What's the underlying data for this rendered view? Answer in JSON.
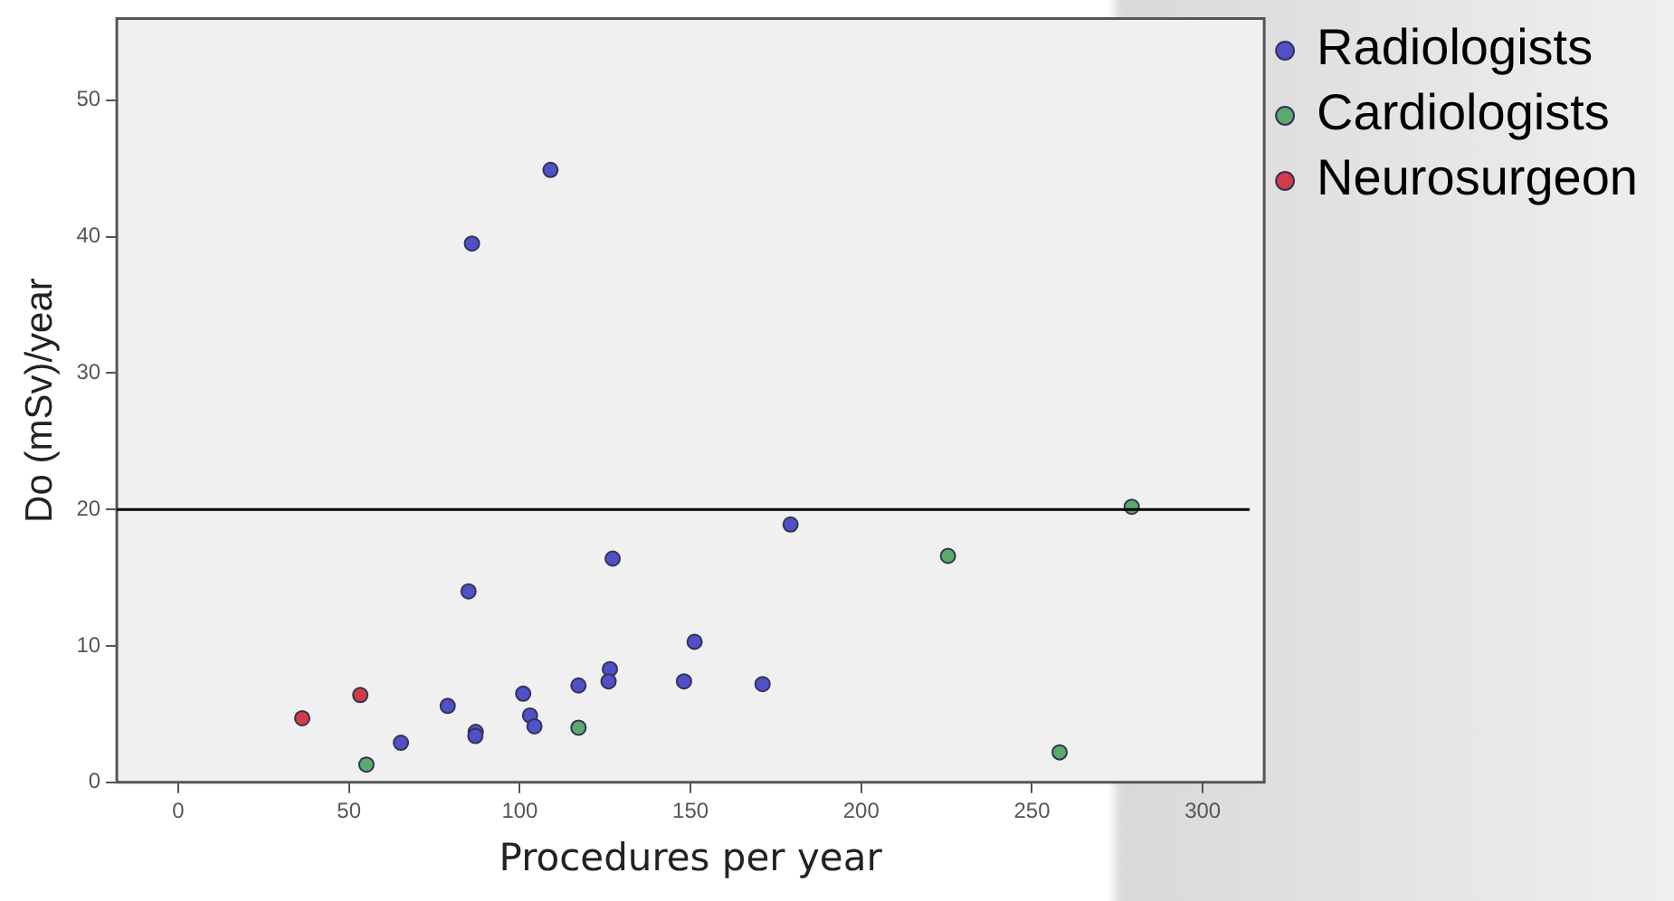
{
  "chart_data": {
    "type": "scatter",
    "xlabel": "Procedures per year",
    "ylabel": "Do (mSv)/year",
    "xlim": [
      -18,
      318
    ],
    "xticks": [
      0,
      50,
      100,
      150,
      200,
      250,
      300
    ],
    "ylim": [
      0,
      56
    ],
    "yticks": [
      0,
      10,
      20,
      30,
      40,
      50
    ],
    "grid": false,
    "legend": "top right",
    "marker": "circle",
    "ref_lines": [
      {
        "axis": "y",
        "value": 20,
        "color": "#000000"
      }
    ],
    "series": [
      {
        "name": "Radiologists",
        "color": "#5050c8",
        "x": [
          109,
          86,
          85,
          127.2,
          126.4,
          126,
          117.2,
          101,
          103,
          104.3,
          87.1,
          87,
          78.9,
          65.2,
          179.3,
          151.2,
          148.1,
          171.1
        ],
        "values": [
          44.9,
          39.5,
          14,
          16.4,
          8.3,
          7.4,
          7.1,
          6.5,
          4.9,
          4.1,
          3.7,
          3.4,
          5.6,
          2.9,
          18.9,
          10.3,
          7.4,
          7.2
        ]
      },
      {
        "name": "Cardiologists",
        "color": "#5aaa6e",
        "x": [
          55.1,
          117.2,
          225.4,
          279.2,
          258.1
        ],
        "values": [
          1.3,
          4,
          16.6,
          20.2,
          2.2
        ]
      },
      {
        "name": "Neurosurgeon",
        "color": "#d23c46",
        "x": [
          36.3,
          53.3
        ],
        "values": [
          4.7,
          6.4
        ]
      }
    ]
  }
}
